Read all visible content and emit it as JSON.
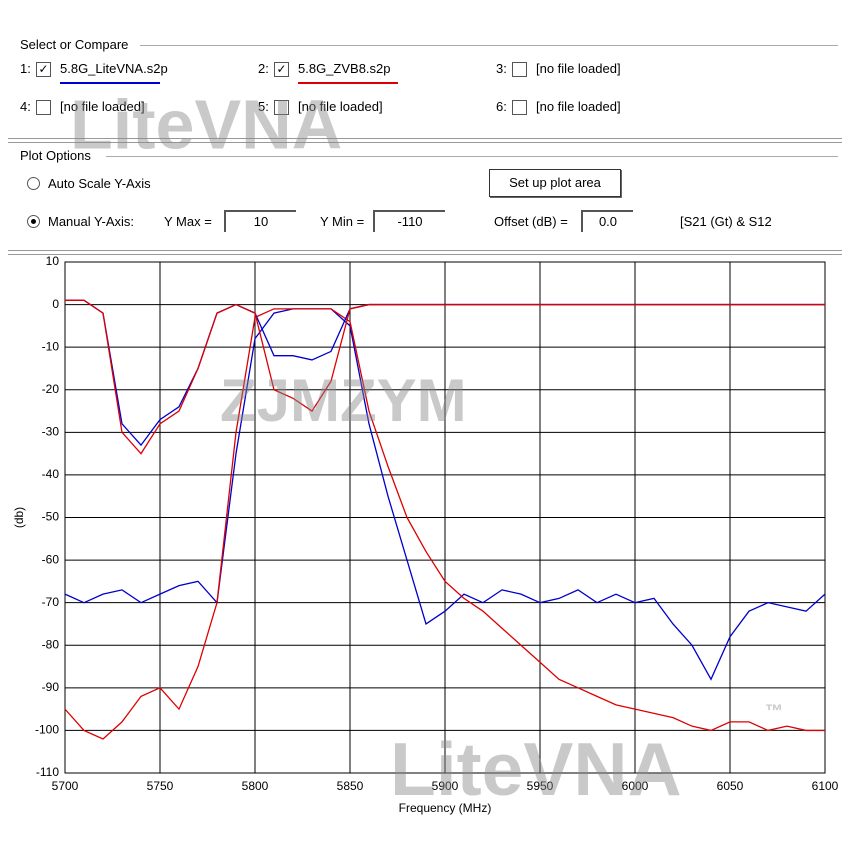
{
  "ui": {
    "select_group": "Select or Compare",
    "files": [
      {
        "index": "1:",
        "checked": true,
        "label_series": 0
      },
      {
        "index": "2:",
        "checked": true,
        "label_series": 1
      },
      {
        "index": "3:",
        "checked": false,
        "label": "[no file loaded]"
      },
      {
        "index": "4:",
        "checked": false,
        "label": "[no file loaded]"
      },
      {
        "index": "5:",
        "checked": false,
        "label": "[no file loaded]"
      },
      {
        "index": "6:",
        "checked": false,
        "label": "[no file loaded]"
      }
    ],
    "plot_group": "Plot Options",
    "auto_scale": "Auto Scale Y-Axis",
    "setup_button": "Set up plot area",
    "manual": "Manual Y-Axis:",
    "ymax_label": "Y Max =",
    "ymax": "10",
    "ymin_label": "Y Min =",
    "ymin": "-110",
    "offset_label": "Offset (dB) =",
    "offset": "0.0",
    "mode": "[S21 (Gt) & S12",
    "watermarks": [
      "LiteVNA",
      "ZJMZYM",
      "LiteVNA",
      "™"
    ]
  },
  "chart_data": {
    "type": "line",
    "xlabel": "Frequency (MHz)",
    "ylabel": "(db)",
    "x": [
      5700,
      5710,
      5720,
      5730,
      5740,
      5750,
      5760,
      5770,
      5780,
      5790,
      5800,
      5810,
      5820,
      5830,
      5840,
      5850,
      5860,
      5870,
      5880,
      5890,
      5900,
      5910,
      5920,
      5930,
      5940,
      5950,
      5960,
      5970,
      5980,
      5990,
      6000,
      6010,
      6020,
      6030,
      6040,
      6050,
      6060,
      6070,
      6080,
      6090,
      6100
    ],
    "series": [
      {
        "name": "5.8G_LiteVNA.s2p",
        "color": "#0000cc",
        "values": [
          -68,
          -70,
          -68,
          -67,
          -70,
          -68,
          -66,
          -65,
          -70,
          -35,
          -8,
          -2,
          -1,
          -1,
          -1,
          -5,
          -28,
          -45,
          -60,
          -75,
          -72,
          -68,
          -70,
          -67,
          -68,
          -70,
          -69,
          -67,
          -70,
          -68,
          -70,
          -69,
          -75,
          -80,
          -88,
          -78,
          -72,
          -70,
          -71,
          -72,
          -68
        ]
      },
      {
        "name": "5.8G_ZVB8.s2p",
        "color": "#dd0000",
        "values": [
          -95,
          -100,
          -102,
          -98,
          -92,
          -90,
          -95,
          -85,
          -70,
          -30,
          -3,
          -1,
          -1,
          -1,
          -1,
          -4,
          -25,
          -38,
          -50,
          -58,
          -65,
          -69,
          -72,
          -76,
          -80,
          -84,
          -88,
          -90,
          -92,
          -94,
          -95,
          -96,
          -97,
          -99,
          -100,
          -98,
          -98,
          -100,
          -99,
          -100,
          -100
        ]
      },
      {
        "color": "#0000cc",
        "values": [
          1,
          1,
          -2,
          -28,
          -33,
          -27,
          -24,
          -15,
          -2,
          0,
          -2,
          -12,
          -12,
          -13,
          -11,
          -1,
          0,
          0,
          0,
          0,
          0,
          0,
          0,
          0,
          0,
          0,
          0,
          0,
          0,
          0,
          0,
          0,
          0,
          0,
          0,
          0,
          0,
          0,
          0,
          0,
          0
        ]
      },
      {
        "color": "#dd0000",
        "values": [
          1,
          1,
          -2,
          -30,
          -35,
          -28,
          -25,
          -15,
          -2,
          0,
          -2,
          -20,
          -22,
          -25,
          -18,
          -1,
          0,
          0,
          0,
          0,
          0,
          0,
          0,
          0,
          0,
          0,
          0,
          0,
          0,
          0,
          0,
          0,
          0,
          0,
          0,
          0,
          0,
          0,
          0,
          0,
          0
        ]
      }
    ],
    "xlim": [
      5700,
      6100
    ],
    "xticks": [
      5700,
      5750,
      5800,
      5850,
      5900,
      5950,
      6000,
      6050,
      6100
    ],
    "ylim": [
      -110,
      10
    ],
    "yticks": [
      10,
      0,
      -10,
      -20,
      -30,
      -40,
      -50,
      -60,
      -70,
      -80,
      -90,
      -100,
      -110
    ],
    "grid": true
  }
}
